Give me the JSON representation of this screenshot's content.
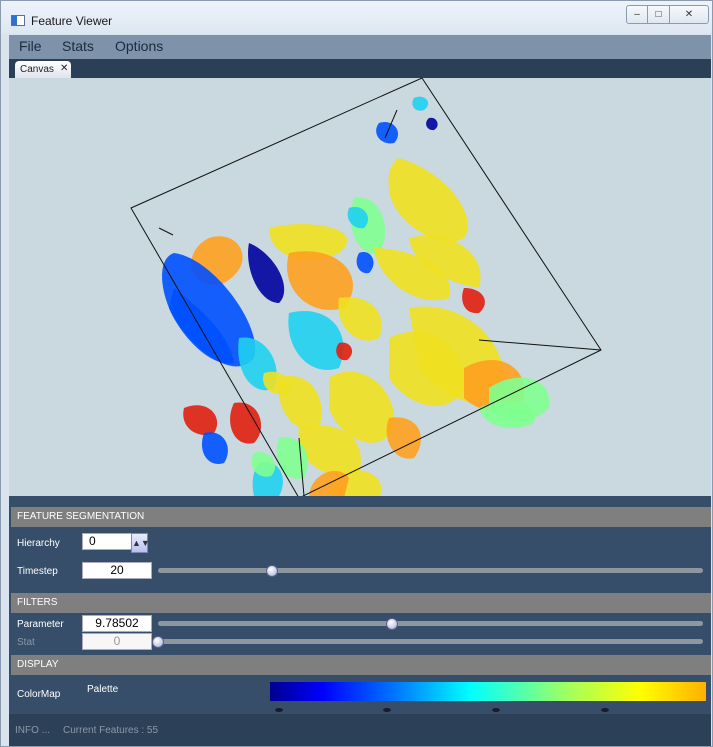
{
  "window": {
    "title": "Feature Viewer",
    "controls": [
      "–",
      "□",
      "✕"
    ]
  },
  "menubar": {
    "items": [
      "File",
      "Stats",
      "Options"
    ]
  },
  "tabs": [
    {
      "label": "Canvas",
      "close": "✕"
    }
  ],
  "canvas": {
    "background": "#c9d9df",
    "colormap": [
      "#0000a0",
      "#0050ff",
      "#20d0f0",
      "#80ff90",
      "#f0e020",
      "#ffa020",
      "#e02010"
    ]
  },
  "panel": {
    "feature_segmentation": {
      "header": "FEATURE SEGMENTATION",
      "hierarchy_label": "Hierarchy",
      "hierarchy_value": "0",
      "timestep_label": "Timestep",
      "timestep_value": "20",
      "timestep_fraction": 0.21
    },
    "filters": {
      "header": "FILTERS",
      "parameter_label": "Parameter",
      "parameter_value": "9.78502",
      "parameter_fraction": 0.43,
      "stat_label": "Stat",
      "stat_value": "0",
      "stat_fraction": 0.0
    },
    "display": {
      "header": "DISPLAY",
      "colormap_label": "ColorMap",
      "palette_label": "Palette"
    }
  },
  "status": {
    "info": "INFO ...",
    "features": "Current Features : 55"
  }
}
